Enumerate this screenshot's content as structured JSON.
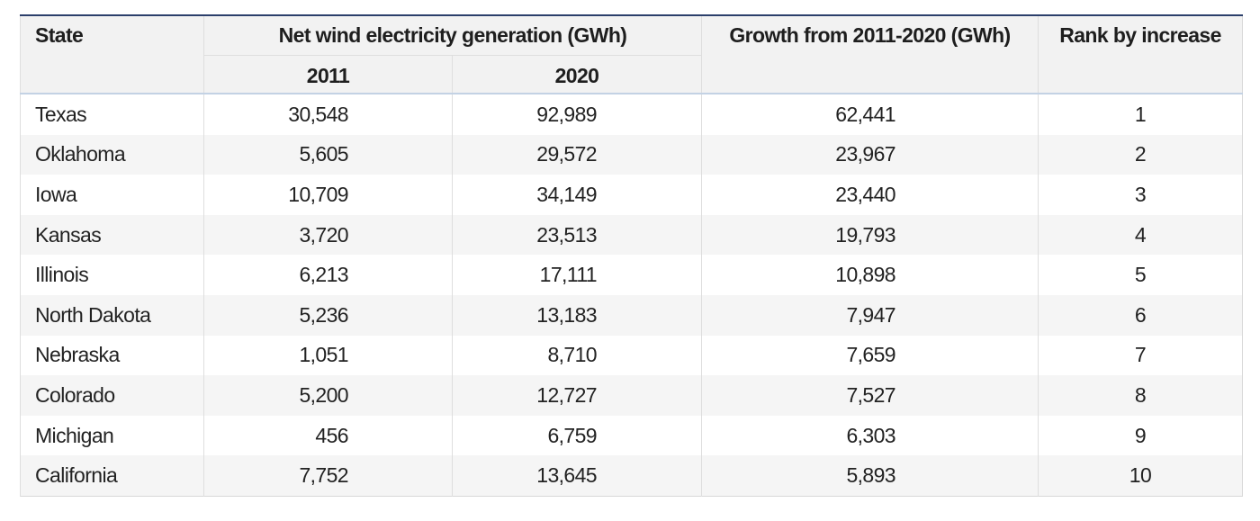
{
  "table": {
    "headers": {
      "state": "State",
      "generation": "Net wind electricity generation (GWh)",
      "year_2011": "2011",
      "year_2020": "2020",
      "growth": "Growth from 2011-2020 (GWh)",
      "rank": "Rank by increase"
    },
    "rows": [
      [
        "Texas",
        "30,548",
        "92,989",
        "62,441",
        "1"
      ],
      [
        "Oklahoma",
        "5,605",
        "29,572",
        "23,967",
        "2"
      ],
      [
        "Iowa",
        "10,709",
        "34,149",
        "23,440",
        "3"
      ],
      [
        "Kansas",
        "3,720",
        "23,513",
        "19,793",
        "4"
      ],
      [
        "Illinois",
        "6,213",
        "17,111",
        "10,898",
        "5"
      ],
      [
        "North Dakota",
        "5,236",
        "13,183",
        "7,947",
        "6"
      ],
      [
        "Nebraska",
        "1,051",
        "8,710",
        "7,659",
        "7"
      ],
      [
        "Colorado",
        "5,200",
        "12,727",
        "7,527",
        "8"
      ],
      [
        "Michigan",
        "456",
        "6,759",
        "6,303",
        "9"
      ],
      [
        "California",
        "7,752",
        "13,645",
        "5,893",
        "10"
      ]
    ]
  }
}
